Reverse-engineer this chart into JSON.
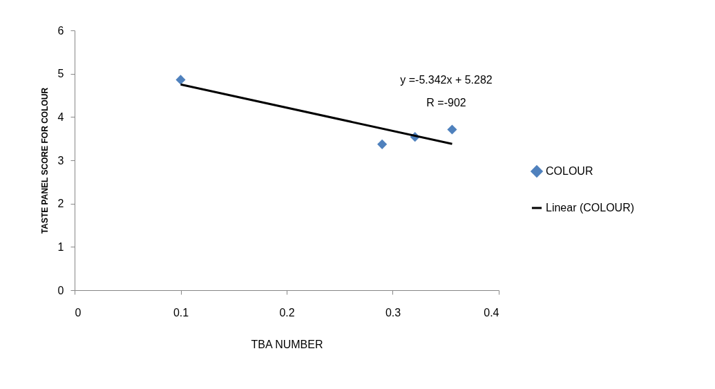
{
  "chart_data": {
    "type": "scatter",
    "xlabel": "TBA NUMBER",
    "ylabel": "TASTE PANEL SCORE FOR COLOUR",
    "xlim": [
      0,
      0.4
    ],
    "xticks": [
      0,
      0.1,
      0.2,
      0.3,
      0.4
    ],
    "ylim": [
      0,
      6
    ],
    "yticks": [
      0,
      1,
      2,
      3,
      4,
      5,
      6
    ],
    "legend": "right",
    "series": [
      {
        "name": "COLOUR",
        "marker": "diamond",
        "color": "#4f81bd",
        "x": [
          0.1,
          0.29,
          0.321,
          0.356
        ],
        "values": [
          4.86,
          3.37,
          3.54,
          3.71
        ]
      },
      {
        "name": "Linear (COLOUR)",
        "type": "line",
        "color": "#000000",
        "line_style": "solid",
        "x": [
          0.1,
          0.356
        ],
        "values": [
          4.75,
          3.38
        ]
      }
    ],
    "annotations": [
      "y =-5.342x + 5.282",
      "R =-902"
    ]
  }
}
